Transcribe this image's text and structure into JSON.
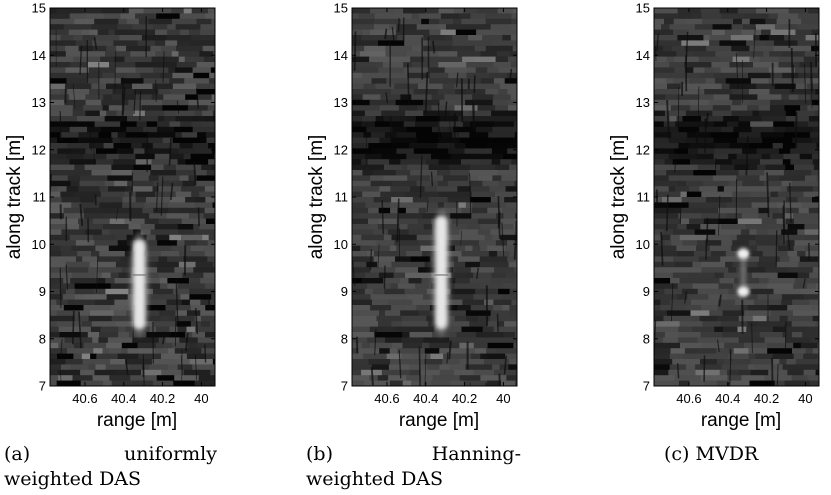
{
  "figure": {
    "panels": [
      {
        "id": "a",
        "caption_tag": "(a)",
        "caption_line1_word": "uniformly",
        "caption_line2": "weighted DAS",
        "xlabel": "range [m]",
        "ylabel": "along track [m]",
        "xticks": [
          "40.6",
          "40.4",
          "40.2",
          "40"
        ],
        "yticks": [
          "7",
          "8",
          "9",
          "10",
          "11",
          "12",
          "13",
          "14",
          "15"
        ],
        "target": "elongated bright streak at along track 8.2-10.1 m, range ~40.32 m"
      },
      {
        "id": "b",
        "caption_tag": "(b)",
        "caption_line1_word": "Hanning-",
        "caption_line2": "weighted DAS",
        "xlabel": "range [m]",
        "ylabel": "along track [m]",
        "xticks": [
          "40.6",
          "40.4",
          "40.2",
          "40"
        ],
        "yticks": [
          "7",
          "8",
          "9",
          "10",
          "11",
          "12",
          "13",
          "14",
          "15"
        ],
        "target": "elongated bright streak at along track 8.2-10.6 m, range ~40.32 m"
      },
      {
        "id": "c",
        "caption_tag": "(c)",
        "caption_line1_word": "MVDR",
        "caption_line2": "",
        "xlabel": "range [m]",
        "ylabel": "along track [m]",
        "xticks": [
          "40.6",
          "40.4",
          "40.2",
          "40"
        ],
        "yticks": [
          "7",
          "8",
          "9",
          "10",
          "11",
          "12",
          "13",
          "14",
          "15"
        ],
        "target": "two compact bright spots at along track ~9.8 m and ~9.0 m, range ~40.32 m"
      }
    ]
  },
  "chart_data": [
    {
      "type": "heatmap",
      "title": "",
      "xlabel": "range [m]",
      "ylabel": "along track [m]",
      "xlim": [
        40.78,
        39.93
      ],
      "ylim": [
        7,
        15
      ],
      "x_ticks": [
        40.6,
        40.4,
        40.2,
        40
      ],
      "y_ticks": [
        7,
        8,
        9,
        10,
        11,
        12,
        13,
        14,
        15
      ],
      "colormap": "gray",
      "dark_band_along_track": [
        11.5,
        13.0
      ],
      "bright_target": {
        "range": 40.32,
        "along_track": [
          8.2,
          10.1
        ]
      }
    },
    {
      "type": "heatmap",
      "title": "",
      "xlabel": "range [m]",
      "ylabel": "along track [m]",
      "xlim": [
        40.78,
        39.93
      ],
      "ylim": [
        7,
        15
      ],
      "x_ticks": [
        40.6,
        40.4,
        40.2,
        40
      ],
      "y_ticks": [
        7,
        8,
        9,
        10,
        11,
        12,
        13,
        14,
        15
      ],
      "colormap": "gray",
      "dark_band_along_track": [
        11.5,
        13.0
      ],
      "bright_target": {
        "range": 40.32,
        "along_track": [
          8.2,
          10.6
        ]
      }
    },
    {
      "type": "heatmap",
      "title": "",
      "xlabel": "range [m]",
      "ylabel": "along track [m]",
      "xlim": [
        40.78,
        39.93
      ],
      "ylim": [
        7,
        15
      ],
      "x_ticks": [
        40.6,
        40.4,
        40.2,
        40
      ],
      "y_ticks": [
        7,
        8,
        9,
        10,
        11,
        12,
        13,
        14,
        15
      ],
      "colormap": "gray",
      "dark_band_along_track": [
        11.5,
        13.0
      ],
      "bright_spots": [
        {
          "range": 40.32,
          "along_track": 9.8
        },
        {
          "range": 40.32,
          "along_track": 9.0
        }
      ]
    }
  ]
}
